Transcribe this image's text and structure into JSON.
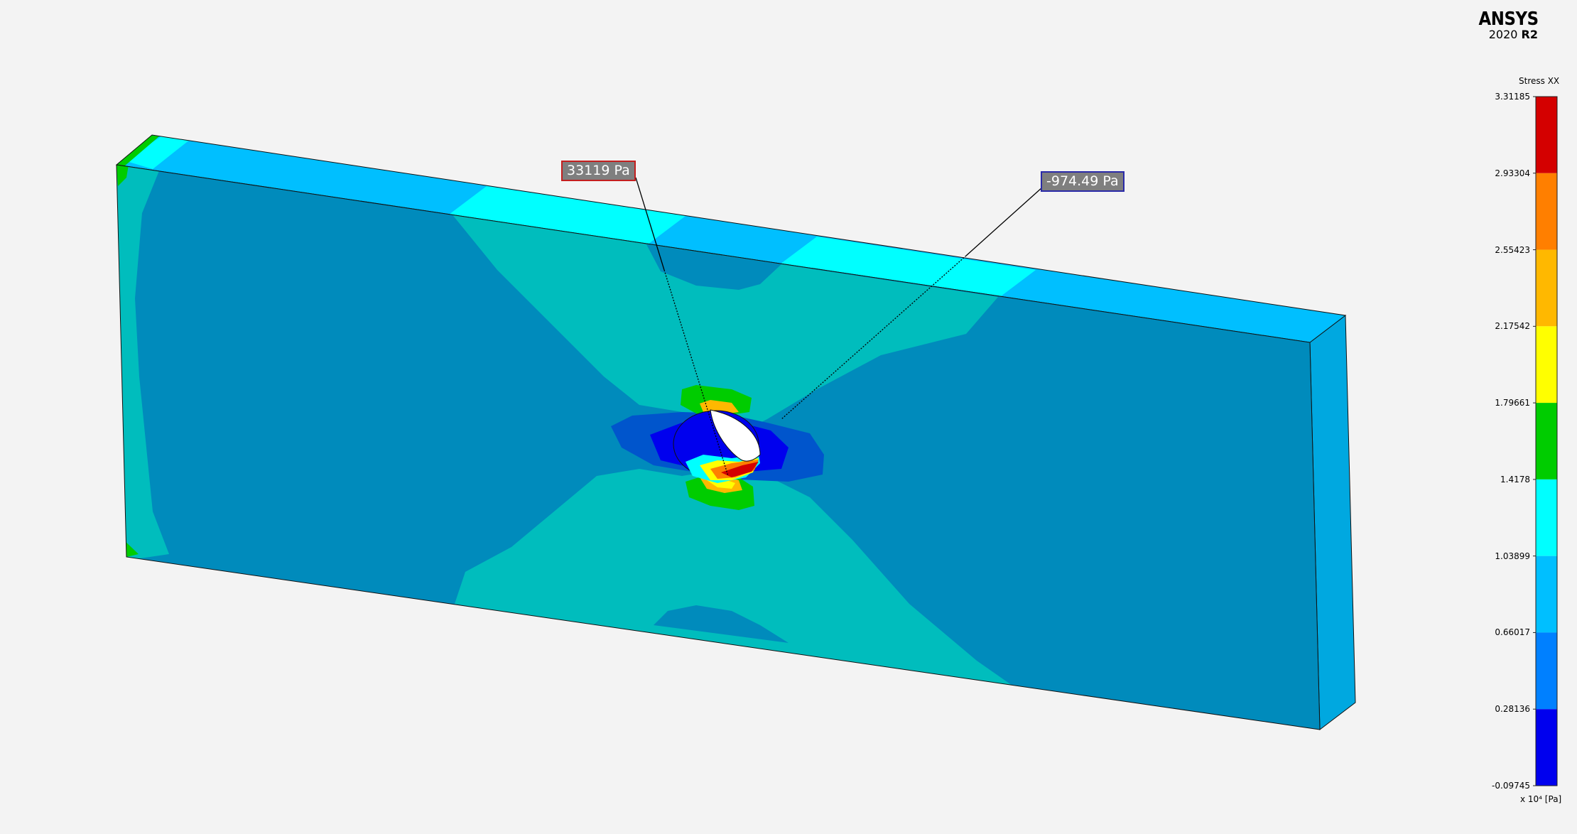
{
  "brand": {
    "name": "ANSYS",
    "version_year": "2020",
    "version_release": "R2"
  },
  "legend": {
    "title": "Stress XX",
    "unit": "x 10⁴ [Pa]",
    "values": [
      "3.31185",
      "2.93304",
      "2.55423",
      "2.17542",
      "1.79661",
      "1.4178",
      "1.03899",
      "0.66017",
      "0.28136",
      "-0.09745"
    ],
    "colors": [
      "#d40000",
      "#ff7f00",
      "#ffb800",
      "#ffff00",
      "#00cc00",
      "#00ffff",
      "#00bfff",
      "#0080ff",
      "#0000ee"
    ]
  },
  "probes": {
    "max_label": "33119 Pa",
    "min_label": "-974.49 Pa"
  },
  "colors": {
    "background": "#f3f3f3",
    "plate_face": "#008bbc",
    "plate_band": "#00bdbd",
    "plate_top": "#00bfff",
    "plate_top_light": "#00ffff",
    "plate_side": "#00a8e0"
  }
}
